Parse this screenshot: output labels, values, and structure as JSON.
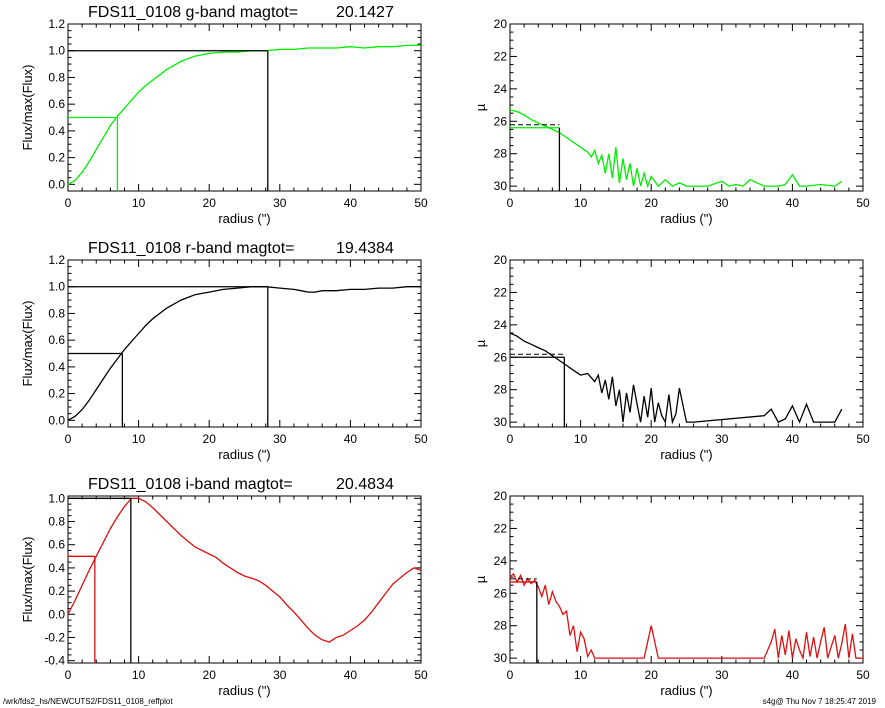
{
  "footer": {
    "file_path": "/wrk/fds2_hs/NEWCUTS2/FDS11_0108_reffplot",
    "stamp": "s4g@  Thu Nov  7 18:25:47 2019"
  },
  "colors": {
    "g": "#00ee00",
    "r": "#000000",
    "i": "#dd1111",
    "axis": "#000000"
  },
  "chart_data": [
    {
      "id": "g-growth",
      "type": "line",
      "title": "FDS11_0108 g-band  magtot=",
      "magtot": "20.1427",
      "xlabel": "radius (\")",
      "ylabel": "Flux/max(Flux)",
      "xlim": [
        0,
        50
      ],
      "ylim": [
        -0.05,
        1.2
      ],
      "xticks": [
        0,
        10,
        20,
        30,
        40,
        50
      ],
      "xtick_labels": [
        "0",
        "10",
        "20",
        "30",
        "40",
        "50"
      ],
      "yticks": [
        0.0,
        0.2,
        0.4,
        0.6,
        0.8,
        1.0,
        1.2
      ],
      "ytick_labels": [
        "0.0",
        "0.2",
        "0.4",
        "0.6",
        "0.8",
        "1.0",
        "1.2"
      ],
      "color": "g",
      "x": [
        0,
        1,
        2,
        3,
        4,
        5,
        6,
        7,
        8,
        9,
        10,
        11,
        12,
        13,
        14,
        15,
        16,
        17,
        18,
        19,
        20,
        22,
        24,
        26,
        28,
        30,
        32,
        34,
        36,
        38,
        40,
        42,
        44,
        46,
        48,
        50
      ],
      "y": [
        0.0,
        0.03,
        0.09,
        0.17,
        0.26,
        0.35,
        0.44,
        0.51,
        0.57,
        0.63,
        0.69,
        0.74,
        0.78,
        0.82,
        0.86,
        0.89,
        0.92,
        0.94,
        0.96,
        0.97,
        0.98,
        0.99,
        0.99,
        1.0,
        1.0,
        1.01,
        1.01,
        1.02,
        1.02,
        1.02,
        1.03,
        1.02,
        1.03,
        1.03,
        1.04,
        1.04
      ],
      "half_light": {
        "radius": 7.0,
        "level": 0.5
      },
      "total_radius": 28.3
    },
    {
      "id": "g-sb",
      "type": "line",
      "xlabel": "radius (\")",
      "ylabel": "µ",
      "xlim": [
        0,
        50
      ],
      "ylim": [
        30.3,
        20
      ],
      "xticks": [
        0,
        10,
        20,
        30,
        40,
        50
      ],
      "xtick_labels": [
        "0",
        "10",
        "20",
        "30",
        "40",
        "50"
      ],
      "yticks": [
        20,
        22,
        24,
        26,
        28,
        30
      ],
      "ytick_labels": [
        "20",
        "22",
        "24",
        "26",
        "28",
        "30"
      ],
      "color": "g",
      "x": [
        0,
        1,
        2,
        3,
        4,
        5,
        6,
        7,
        8,
        9,
        10,
        11,
        11.5,
        12,
        12.5,
        13,
        13.5,
        14,
        14.5,
        15,
        15.5,
        16,
        16.5,
        17,
        17.5,
        18,
        18.5,
        19,
        19.5,
        20,
        21,
        22,
        23,
        24,
        25,
        26,
        28,
        30,
        31,
        32,
        33,
        34,
        36,
        38,
        39,
        40,
        41,
        42,
        44,
        46,
        47
      ],
      "y": [
        25.3,
        25.4,
        25.6,
        25.9,
        26.1,
        26.3,
        26.5,
        26.7,
        27.0,
        27.3,
        27.6,
        27.9,
        28.2,
        27.8,
        28.6,
        28.1,
        29.2,
        28.0,
        29.5,
        27.6,
        29.8,
        28.3,
        29.6,
        28.6,
        30.0,
        28.9,
        30.0,
        29.2,
        30.0,
        29.4,
        30.0,
        29.6,
        30.0,
        29.8,
        30.0,
        30.0,
        30.0,
        29.7,
        30.0,
        29.9,
        30.0,
        29.6,
        30.0,
        30.0,
        29.9,
        29.3,
        30.0,
        30.0,
        29.9,
        30.0,
        29.7
      ],
      "half_light_sb": 26.4,
      "half_light_radius": 7.0
    },
    {
      "id": "r-growth",
      "type": "line",
      "title": "FDS11_0108 r-band  magtot=",
      "magtot": "19.4384",
      "xlabel": "radius (\")",
      "ylabel": "Flux/max(Flux)",
      "xlim": [
        0,
        50
      ],
      "ylim": [
        -0.05,
        1.2
      ],
      "xticks": [
        0,
        10,
        20,
        30,
        40,
        50
      ],
      "xtick_labels": [
        "0",
        "10",
        "20",
        "30",
        "40",
        "50"
      ],
      "yticks": [
        0.0,
        0.2,
        0.4,
        0.6,
        0.8,
        1.0,
        1.2
      ],
      "ytick_labels": [
        "0.0",
        "0.2",
        "0.4",
        "0.6",
        "0.8",
        "1.0",
        "1.2"
      ],
      "color": "r",
      "x": [
        0,
        1,
        2,
        3,
        4,
        5,
        6,
        7,
        8,
        9,
        10,
        11,
        12,
        13,
        14,
        15,
        16,
        17,
        18,
        19,
        20,
        22,
        24,
        26,
        28,
        30,
        32,
        33,
        34,
        35,
        36,
        38,
        40,
        42,
        44,
        46,
        48,
        50
      ],
      "y": [
        0.0,
        0.03,
        0.08,
        0.15,
        0.23,
        0.31,
        0.39,
        0.46,
        0.53,
        0.59,
        0.65,
        0.71,
        0.76,
        0.8,
        0.84,
        0.87,
        0.9,
        0.92,
        0.94,
        0.95,
        0.96,
        0.98,
        0.99,
        1.0,
        1.0,
        0.99,
        0.98,
        0.97,
        0.96,
        0.96,
        0.97,
        0.97,
        0.98,
        0.98,
        0.99,
        0.99,
        1.0,
        1.0
      ],
      "half_light": {
        "radius": 7.7,
        "level": 0.5
      },
      "total_radius": 28.3
    },
    {
      "id": "r-sb",
      "type": "line",
      "xlabel": "radius (\")",
      "ylabel": "µ",
      "xlim": [
        0,
        50
      ],
      "ylim": [
        30.3,
        20
      ],
      "xticks": [
        0,
        10,
        20,
        30,
        40,
        50
      ],
      "xtick_labels": [
        "0",
        "10",
        "20",
        "30",
        "40",
        "50"
      ],
      "yticks": [
        20,
        22,
        24,
        26,
        28,
        30
      ],
      "ytick_labels": [
        "20",
        "22",
        "24",
        "26",
        "28",
        "30"
      ],
      "color": "r",
      "x": [
        0,
        1,
        2,
        3,
        4,
        5,
        6,
        7,
        8,
        9,
        10,
        11,
        12,
        12.5,
        13,
        13.5,
        14,
        14.5,
        15,
        15.5,
        16,
        16.5,
        17,
        17.5,
        18,
        18.5,
        19,
        19.5,
        20,
        20.5,
        21,
        21.5,
        22,
        22.5,
        23,
        23.5,
        24,
        25,
        26,
        36,
        37,
        38,
        39,
        40,
        41,
        42,
        43,
        44,
        45,
        46,
        47
      ],
      "y": [
        24.5,
        24.7,
        25.0,
        25.2,
        25.4,
        25.6,
        25.9,
        26.2,
        26.5,
        26.8,
        27.1,
        27.0,
        27.5,
        27.1,
        28.2,
        27.4,
        28.6,
        27.2,
        29.0,
        28.0,
        30.0,
        28.2,
        29.4,
        27.7,
        28.9,
        30.0,
        28.4,
        29.7,
        27.9,
        30.0,
        28.8,
        29.6,
        30.0,
        28.3,
        30.0,
        29.5,
        27.9,
        30.0,
        30.0,
        29.6,
        29.2,
        30.0,
        29.8,
        29.0,
        30.0,
        28.9,
        30.0,
        30.0,
        30.0,
        30.0,
        29.2
      ],
      "half_light_sb": 26.0,
      "half_light_radius": 7.7
    },
    {
      "id": "i-growth",
      "type": "line",
      "title": "FDS11_0108 i-band  magtot=",
      "magtot": "20.4834",
      "xlabel": "radius (\")",
      "ylabel": "Flux/max(Flux)",
      "xlim": [
        0,
        50
      ],
      "ylim": [
        -0.42,
        1.02
      ],
      "xticks": [
        0,
        10,
        20,
        30,
        40,
        50
      ],
      "xtick_labels": [
        "0",
        "10",
        "20",
        "30",
        "40",
        "50"
      ],
      "yticks": [
        -0.4,
        -0.2,
        0.0,
        0.2,
        0.4,
        0.6,
        0.8,
        1.0
      ],
      "ytick_labels": [
        "-0.4",
        "-0.2",
        "0.0",
        "0.2",
        "0.4",
        "0.6",
        "0.8",
        "1.0"
      ],
      "color": "i",
      "x": [
        0,
        1,
        2,
        3,
        4,
        5,
        6,
        7,
        8,
        9,
        10,
        11,
        12,
        13,
        14,
        15,
        16,
        17,
        18,
        19,
        20,
        21,
        22,
        23,
        24,
        25,
        26,
        27,
        28,
        29,
        30,
        31,
        32,
        33,
        34,
        35,
        36,
        37,
        38,
        39,
        40,
        41,
        42,
        43,
        44,
        45,
        46,
        47,
        48,
        49,
        50
      ],
      "y": [
        0.0,
        0.12,
        0.25,
        0.38,
        0.5,
        0.62,
        0.74,
        0.84,
        0.93,
        1.0,
        1.0,
        0.97,
        0.92,
        0.86,
        0.8,
        0.74,
        0.68,
        0.63,
        0.58,
        0.55,
        0.52,
        0.49,
        0.44,
        0.4,
        0.36,
        0.33,
        0.31,
        0.29,
        0.25,
        0.2,
        0.15,
        0.08,
        0.02,
        -0.05,
        -0.12,
        -0.18,
        -0.22,
        -0.24,
        -0.2,
        -0.18,
        -0.14,
        -0.1,
        -0.05,
        0.02,
        0.1,
        0.18,
        0.26,
        0.31,
        0.36,
        0.4,
        0.38
      ],
      "half_light": {
        "radius": 3.8,
        "level": 0.5
      },
      "total_radius": 8.9
    },
    {
      "id": "i-sb",
      "type": "line",
      "xlabel": "radius (\")",
      "ylabel": "µ",
      "xlim": [
        0,
        50
      ],
      "ylim": [
        30.3,
        20
      ],
      "xticks": [
        0,
        10,
        20,
        30,
        40,
        50
      ],
      "xtick_labels": [
        "0",
        "10",
        "20",
        "30",
        "40",
        "50"
      ],
      "yticks": [
        20,
        22,
        24,
        26,
        28,
        30
      ],
      "ytick_labels": [
        "20",
        "22",
        "24",
        "26",
        "28",
        "30"
      ],
      "color": "i",
      "x": [
        0,
        0.5,
        1,
        1.5,
        2,
        2.5,
        3,
        3.5,
        4,
        4.5,
        5,
        5.5,
        6,
        6.5,
        7,
        7.5,
        8,
        8.5,
        9,
        9.5,
        10,
        10.5,
        11,
        11.5,
        12,
        13,
        14,
        15,
        16,
        17,
        18,
        19,
        20,
        21,
        22,
        23,
        24,
        25,
        26,
        27,
        28,
        29,
        30,
        31,
        32,
        33,
        34,
        35,
        36,
        37,
        37.5,
        38,
        38.5,
        39,
        39.5,
        40,
        40.5,
        41,
        41.5,
        42,
        42.5,
        43,
        43.5,
        44,
        44.5,
        45,
        45.5,
        46,
        46.5,
        47,
        47.5,
        48,
        48.5,
        49,
        50
      ],
      "y": [
        25.0,
        24.8,
        25.3,
        24.9,
        25.5,
        25.1,
        25.4,
        25.2,
        25.6,
        26.2,
        25.5,
        26.7,
        25.9,
        26.5,
        26.8,
        27.3,
        27.1,
        28.6,
        28.0,
        29.6,
        28.4,
        28.8,
        29.9,
        29.5,
        30.0,
        30.0,
        30.0,
        30.0,
        30.0,
        30.0,
        30.0,
        30.0,
        28.0,
        30.0,
        30.0,
        30.0,
        30.0,
        30.0,
        30.0,
        30.0,
        30.0,
        30.0,
        30.0,
        30.0,
        30.0,
        30.0,
        30.0,
        30.0,
        30.0,
        29.0,
        28.2,
        30.0,
        28.6,
        29.8,
        28.3,
        30.0,
        28.8,
        29.5,
        30.0,
        28.4,
        29.9,
        28.7,
        30.0,
        29.0,
        28.1,
        30.0,
        29.3,
        28.6,
        30.0,
        29.1,
        27.9,
        30.0,
        28.5,
        30.0,
        30.0
      ],
      "half_light_sb": 25.3,
      "half_light_radius": 3.8
    }
  ]
}
